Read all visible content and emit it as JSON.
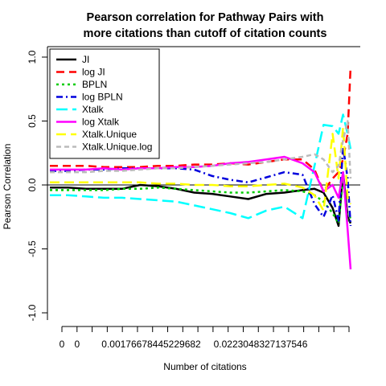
{
  "chart_data": {
    "type": "line",
    "title_line1": "Pearson correlation for Pathway Pairs with",
    "title_line2": "more citations than cutoff of citation counts",
    "xlabel": "Number of citations",
    "ylabel": "Pearson Correlation",
    "xlim": [
      0,
      1
    ],
    "ylim": [
      -1.0,
      1.0
    ],
    "y_ticks": [
      -1.0,
      -0.5,
      0.0,
      0.5,
      1.0
    ],
    "y_tick_labels": [
      "-1.0",
      "-0.5",
      "0.0",
      "0.5",
      "1.0"
    ],
    "x_tick_count": 20,
    "x_tick_labels": [
      "0",
      "0",
      "0.00176678445229682",
      "0.0223048327137546"
    ],
    "reference_line_y": 0.0,
    "legend_position": "top-left",
    "grid": false,
    "x": [
      0,
      0.06,
      0.12,
      0.18,
      0.24,
      0.3,
      0.36,
      0.42,
      0.48,
      0.54,
      0.6,
      0.66,
      0.72,
      0.78,
      0.84,
      0.88,
      0.91,
      0.94,
      0.96,
      0.975,
      0.99,
      1.0
    ],
    "series": [
      {
        "name": "JI",
        "color": "#000000",
        "dash": "solid",
        "width": 2.5,
        "values": [
          -0.02,
          -0.02,
          -0.03,
          -0.03,
          -0.03,
          0.0,
          -0.01,
          -0.03,
          -0.06,
          -0.07,
          -0.09,
          -0.11,
          -0.07,
          -0.06,
          -0.04,
          -0.03,
          -0.06,
          -0.18,
          -0.32,
          0.1,
          -0.25,
          -0.3
        ]
      },
      {
        "name": "log JI",
        "color": "#ff0000",
        "dash": "10,6",
        "width": 2.5,
        "values": [
          0.15,
          0.15,
          0.15,
          0.14,
          0.14,
          0.14,
          0.15,
          0.15,
          0.16,
          0.16,
          0.17,
          0.16,
          0.18,
          0.2,
          0.2,
          0.12,
          -0.05,
          0.05,
          0.1,
          0.2,
          0.4,
          0.93
        ]
      },
      {
        "name": "BPLN",
        "color": "#00cc00",
        "dash": "3,4",
        "width": 2.5,
        "values": [
          -0.04,
          -0.04,
          -0.04,
          -0.04,
          -0.03,
          -0.03,
          -0.02,
          -0.03,
          -0.04,
          -0.05,
          -0.06,
          -0.06,
          -0.05,
          -0.04,
          -0.05,
          -0.08,
          -0.13,
          -0.22,
          -0.3,
          0.05,
          -0.28,
          -0.25
        ]
      },
      {
        "name": "log BPLN",
        "color": "#0000dd",
        "dash": "8,4,2,4",
        "width": 2.5,
        "values": [
          0.11,
          0.11,
          0.12,
          0.12,
          0.13,
          0.13,
          0.13,
          0.13,
          0.12,
          0.07,
          0.04,
          0.02,
          0.06,
          0.1,
          0.08,
          -0.15,
          -0.25,
          -0.08,
          -0.28,
          0.3,
          0.05,
          -0.32
        ]
      },
      {
        "name": "Xtalk",
        "color": "#00ffff",
        "dash": "14,6",
        "width": 2.5,
        "values": [
          -0.08,
          -0.08,
          -0.09,
          -0.1,
          -0.1,
          -0.11,
          -0.12,
          -0.13,
          -0.16,
          -0.19,
          -0.22,
          -0.26,
          -0.2,
          -0.17,
          -0.26,
          0.15,
          0.47,
          0.46,
          0.4,
          0.55,
          0.4,
          0.28
        ]
      },
      {
        "name": "log Xtalk",
        "color": "#ff00ff",
        "dash": "solid",
        "width": 2.5,
        "values": [
          0.12,
          0.12,
          0.12,
          0.13,
          0.12,
          0.13,
          0.13,
          0.14,
          0.14,
          0.15,
          0.17,
          0.18,
          0.2,
          0.22,
          0.17,
          0.1,
          -0.05,
          0.0,
          -0.1,
          0.1,
          -0.35,
          -0.66
        ]
      },
      {
        "name": "Xtalk.Unique",
        "color": "#ffff00",
        "dash": "12,6",
        "width": 2.5,
        "values": [
          0.02,
          0.02,
          0.02,
          0.02,
          0.02,
          0.02,
          0.01,
          0.01,
          0.0,
          0.0,
          -0.01,
          -0.01,
          0.0,
          0.01,
          -0.02,
          -0.08,
          -0.2,
          0.4,
          0.05,
          0.45,
          -0.1,
          -0.15
        ]
      },
      {
        "name": "Xtalk.Unique.log",
        "color": "#bbbbbb",
        "dash": "6,4",
        "width": 2.5,
        "values": [
          0.1,
          0.1,
          0.1,
          0.11,
          0.11,
          0.12,
          0.13,
          0.13,
          0.14,
          0.15,
          0.16,
          0.17,
          0.18,
          0.2,
          0.22,
          0.24,
          0.2,
          0.1,
          0.15,
          0.35,
          0.5,
          0.05
        ]
      }
    ]
  }
}
